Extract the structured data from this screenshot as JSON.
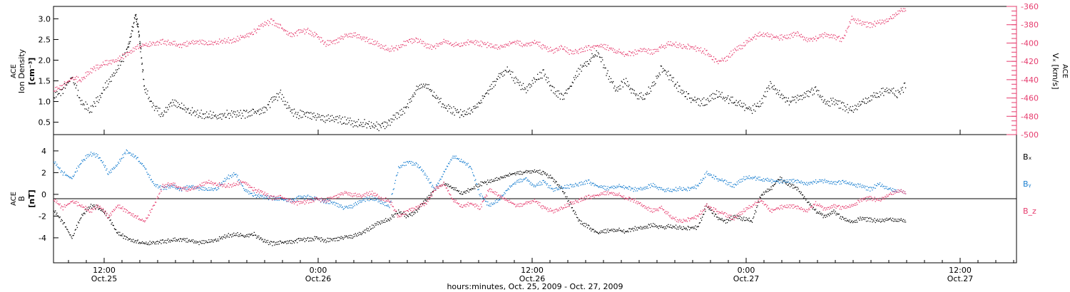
{
  "chart_data": [
    {
      "type": "scatter",
      "panel": "top",
      "title": "",
      "ylabel_left": [
        "ACE",
        "Ion Density",
        "[cm⁻³]"
      ],
      "ylabel_right": [
        "ACE",
        "Vₓ [km/s]"
      ],
      "ylim_left": [
        0.2,
        3.3
      ],
      "ylim_right": [
        -500,
        -360
      ],
      "yticks_left": [
        "0.5",
        "1.0",
        "1.5",
        "2.0",
        "2.5",
        "3.0"
      ],
      "yticks_right": [
        "-360",
        "-380",
        "-400",
        "-420",
        "-440",
        "-460",
        "-480",
        "-500"
      ],
      "series": [
        {
          "color": "#000000",
          "axis": "left",
          "x": [
            3,
            4,
            5,
            6,
            7,
            8,
            9,
            10,
            11,
            11.5,
            12,
            12.3,
            12.6,
            13,
            14,
            15,
            16,
            17,
            18,
            19,
            20,
            21,
            22,
            23,
            24,
            25,
            26,
            27,
            28,
            29,
            30,
            31,
            32,
            33,
            34,
            35,
            36,
            37,
            38,
            39,
            40,
            41,
            42,
            43,
            44,
            45,
            46,
            47,
            48,
            49,
            50,
            51,
            52,
            53,
            54,
            55,
            56,
            57,
            58,
            59,
            60,
            61,
            62,
            63,
            64,
            65,
            66,
            67,
            68,
            69,
            70,
            71,
            72,
            73,
            74,
            75,
            76,
            77,
            78,
            79,
            80,
            81,
            82,
            83,
            84,
            85,
            86,
            87,
            88,
            89,
            90,
            91,
            92,
            93,
            94,
            95,
            96,
            97
          ],
          "y": [
            1.1,
            1.3,
            1.6,
            1.0,
            0.8,
            1.1,
            1.5,
            1.8,
            2.2,
            2.6,
            3.1,
            2.8,
            2.2,
            1.3,
            0.9,
            0.7,
            1.0,
            0.9,
            0.8,
            0.7,
            0.7,
            0.65,
            0.7,
            0.7,
            0.7,
            0.75,
            0.8,
            1.0,
            1.2,
            0.8,
            0.7,
            0.7,
            0.65,
            0.6,
            0.6,
            0.55,
            0.5,
            0.5,
            0.45,
            0.4,
            0.5,
            0.7,
            0.9,
            1.3,
            1.4,
            1.2,
            0.9,
            0.8,
            0.7,
            0.8,
            1.0,
            1.3,
            1.6,
            1.8,
            1.5,
            1.3,
            1.5,
            1.7,
            1.3,
            1.1,
            1.4,
            1.8,
            2.0,
            2.2,
            1.7,
            1.3,
            1.5,
            1.2,
            1.1,
            1.4,
            1.8,
            1.6,
            1.3,
            1.1,
            1.0,
            1.0,
            1.2,
            1.1,
            1.0,
            0.9,
            0.8,
            1.0,
            1.4,
            1.2,
            1.0,
            1.1,
            1.2,
            1.3,
            1.0,
            1.0,
            0.9,
            0.8,
            1.0,
            1.1,
            1.2,
            1.3,
            1.2,
            1.4
          ]
        },
        {
          "color": "#e63c6e",
          "axis": "right",
          "x": [
            3,
            4,
            5,
            6,
            7,
            8,
            9,
            10,
            11,
            12,
            13,
            14,
            15,
            16,
            17,
            18,
            19,
            20,
            21,
            22,
            23,
            24,
            25,
            26,
            27,
            28,
            29,
            30,
            31,
            32,
            33,
            34,
            35,
            36,
            37,
            38,
            39,
            40,
            41,
            42,
            43,
            44,
            45,
            46,
            47,
            48,
            49,
            50,
            51,
            52,
            53,
            54,
            55,
            56,
            57,
            58,
            59,
            60,
            61,
            62,
            63,
            64,
            65,
            66,
            67,
            68,
            69,
            70,
            71,
            72,
            73,
            74,
            75,
            76,
            77,
            78,
            79,
            80,
            81,
            82,
            83,
            84,
            85,
            86,
            87,
            88,
            89,
            90,
            91,
            92,
            93,
            94,
            95,
            96,
            97
          ],
          "y": [
            -452,
            -446,
            -438,
            -440,
            -430,
            -425,
            -420,
            -418,
            -412,
            -405,
            -402,
            -400,
            -398,
            -400,
            -402,
            -399,
            -398,
            -400,
            -398,
            -397,
            -396,
            -392,
            -388,
            -380,
            -376,
            -382,
            -390,
            -388,
            -386,
            -392,
            -400,
            -398,
            -392,
            -390,
            -394,
            -398,
            -402,
            -406,
            -404,
            -398,
            -396,
            -402,
            -404,
            -398,
            -402,
            -400,
            -398,
            -400,
            -402,
            -404,
            -401,
            -398,
            -402,
            -398,
            -404,
            -408,
            -405,
            -410,
            -408,
            -405,
            -402,
            -404,
            -408,
            -412,
            -410,
            -406,
            -410,
            -404,
            -400,
            -402,
            -404,
            -406,
            -410,
            -420,
            -418,
            -408,
            -402,
            -394,
            -390,
            -392,
            -394,
            -392,
            -390,
            -396,
            -395,
            -390,
            -392,
            -396,
            -372,
            -378,
            -380,
            -377,
            -374,
            -366,
            -362
          ]
        }
      ]
    },
    {
      "type": "scatter",
      "panel": "bottom",
      "title": "",
      "ylabel": [
        "ACE",
        "B",
        "[nT]"
      ],
      "ylim": [
        -6.3,
        5.5
      ],
      "yticks": [
        "4",
        "2",
        "0",
        "-2",
        "-4"
      ],
      "xlabel": "hours:minutes, Oct. 25, 2009 - Oct. 27, 2009",
      "xticks": [
        {
          "time": "12:00",
          "date": "Oct.25"
        },
        {
          "time": "0:00",
          "date": "Oct.26"
        },
        {
          "time": "12:00",
          "date": "Oct.26"
        },
        {
          "time": "0:00",
          "date": "Oct.27"
        },
        {
          "time": "12:00",
          "date": "Oct.27"
        }
      ],
      "xrange_hours": [
        3,
        56
      ],
      "series": [
        {
          "name": "Bₓ",
          "color": "#000000",
          "x": [
            3,
            4,
            5,
            6,
            7,
            8,
            9,
            10,
            11,
            12,
            13,
            14,
            15,
            16,
            17,
            18,
            19,
            20,
            21,
            22,
            23,
            24,
            25,
            26,
            27,
            28,
            29,
            30,
            31,
            32,
            33,
            34,
            35,
            36,
            37,
            38,
            39,
            40,
            41,
            42,
            43,
            44,
            45,
            46,
            47,
            48,
            49,
            50,
            51,
            52,
            53,
            54,
            55,
            56,
            57,
            58,
            59,
            60,
            61,
            62,
            63,
            64,
            65,
            66,
            67,
            68,
            69,
            70,
            71,
            72,
            73,
            74,
            75,
            76,
            77,
            78,
            79,
            80,
            81,
            82,
            83,
            84,
            85,
            86,
            87,
            88,
            89,
            90,
            91,
            92,
            93,
            94,
            95,
            96,
            97
          ],
          "y": [
            -1.5,
            -2.5,
            -4.0,
            -2.0,
            -1.0,
            -1.2,
            -2.0,
            -3.5,
            -4.0,
            -4.3,
            -4.5,
            -4.4,
            -4.3,
            -4.2,
            -4.1,
            -4.2,
            -4.4,
            -4.3,
            -4.1,
            -3.8,
            -3.6,
            -3.8,
            -3.6,
            -4.2,
            -4.5,
            -4.4,
            -4.3,
            -4.2,
            -4.1,
            -4.0,
            -4.2,
            -4.1,
            -3.9,
            -3.8,
            -3.5,
            -3.0,
            -2.5,
            -2.2,
            -1.5,
            -2.0,
            -1.5,
            -0.5,
            0.5,
            1.0,
            0.6,
            0.2,
            0.5,
            1.0,
            1.2,
            1.5,
            1.8,
            2.0,
            2.1,
            2.2,
            2.0,
            1.5,
            0.5,
            -1.0,
            -2.5,
            -3.0,
            -3.5,
            -3.3,
            -3.2,
            -3.4,
            -3.1,
            -3.0,
            -2.8,
            -3.0,
            -2.9,
            -3.0,
            -3.1,
            -3.0,
            -1.0,
            -2.0,
            -2.5,
            -2.0,
            -2.2,
            -2.4,
            0.0,
            0.5,
            1.5,
            1.0,
            0.5,
            -0.5,
            -1.5,
            -2.0,
            -1.5,
            -2.2,
            -2.5,
            -2.2,
            -2.3,
            -2.4,
            -2.2,
            -2.3,
            -2.4
          ]
        },
        {
          "name": "Bᵧ",
          "color": "#1a7fd0",
          "x": [
            3,
            4,
            5,
            6,
            7,
            8,
            9,
            10,
            11,
            12,
            13,
            14,
            15,
            16,
            17,
            18,
            19,
            20,
            21,
            22,
            23,
            24,
            25,
            26,
            27,
            28,
            29,
            30,
            31,
            32,
            33,
            34,
            35,
            36,
            37,
            38,
            39,
            40,
            41,
            42,
            43,
            44,
            45,
            46,
            47,
            48,
            49,
            50,
            51,
            52,
            53,
            54,
            55,
            56,
            57,
            58,
            59,
            60,
            61,
            62,
            63,
            64,
            65,
            66,
            67,
            68,
            69,
            70,
            71,
            72,
            73,
            74,
            75,
            76,
            77,
            78,
            79,
            80,
            81,
            82,
            83,
            84,
            85,
            86,
            87,
            88,
            89,
            90,
            91,
            92,
            93,
            94,
            95,
            96,
            97
          ],
          "y": [
            3.0,
            2.0,
            1.5,
            3.0,
            3.8,
            3.5,
            2.0,
            2.8,
            4.0,
            3.5,
            2.5,
            1.0,
            0.6,
            0.8,
            0.5,
            0.8,
            0.6,
            0.5,
            0.6,
            1.5,
            2.0,
            0.5,
            0.0,
            -0.2,
            -0.3,
            -0.4,
            -0.5,
            -0.3,
            -0.2,
            -0.4,
            -0.6,
            -0.8,
            -1.2,
            -1.0,
            -0.5,
            -0.3,
            -0.6,
            -1.0,
            2.5,
            3.0,
            2.8,
            1.8,
            0.5,
            2.0,
            3.5,
            3.2,
            2.5,
            0.0,
            -1.0,
            -0.5,
            0.5,
            1.2,
            1.5,
            0.8,
            1.2,
            0.5,
            0.6,
            0.8,
            1.0,
            1.2,
            0.8,
            0.6,
            0.8,
            0.7,
            0.5,
            0.6,
            0.9,
            0.5,
            0.4,
            0.6,
            0.5,
            0.8,
            2.0,
            1.5,
            1.2,
            0.8,
            1.5,
            1.6,
            1.4,
            1.3,
            1.2,
            1.3,
            1.2,
            1.0,
            1.2,
            1.3,
            1.1,
            1.2,
            1.0,
            0.8,
            0.5,
            1.0,
            0.6,
            0.4,
            0.2
          ]
        },
        {
          "name": "B_z",
          "color": "#e63c6e",
          "x": [
            3,
            4,
            5,
            6,
            7,
            8,
            9,
            10,
            11,
            12,
            13,
            14,
            15,
            16,
            17,
            18,
            19,
            20,
            21,
            22,
            23,
            24,
            25,
            26,
            27,
            28,
            29,
            30,
            31,
            32,
            33,
            34,
            35,
            36,
            37,
            38,
            39,
            40,
            41,
            42,
            43,
            44,
            45,
            46,
            47,
            48,
            49,
            50,
            51,
            52,
            53,
            54,
            55,
            56,
            57,
            58,
            59,
            60,
            61,
            62,
            63,
            64,
            65,
            66,
            67,
            68,
            69,
            70,
            71,
            72,
            73,
            74,
            75,
            76,
            77,
            78,
            79,
            80,
            81,
            82,
            83,
            84,
            85,
            86,
            87,
            88,
            89,
            90,
            91,
            92,
            93,
            94,
            95,
            96,
            97
          ],
          "y": [
            -0.5,
            -1.2,
            -0.6,
            -1.0,
            -1.5,
            -1.0,
            -2.0,
            -1.0,
            -1.5,
            -2.0,
            -2.5,
            -1.0,
            0.8,
            1.0,
            0.6,
            0.5,
            0.8,
            1.2,
            1.0,
            0.8,
            1.0,
            1.2,
            0.5,
            0.2,
            -0.3,
            -0.2,
            -0.5,
            -0.8,
            -0.6,
            -0.4,
            -0.5,
            -0.2,
            0.2,
            0.0,
            -0.1,
            0.2,
            -0.3,
            -0.5,
            -2.0,
            -1.5,
            -1.2,
            -0.8,
            0.5,
            1.0,
            -0.5,
            -1.0,
            -0.8,
            -1.2,
            0.5,
            0.0,
            -0.5,
            -1.0,
            -0.8,
            -0.5,
            -1.2,
            -1.5,
            -1.3,
            -0.8,
            -0.5,
            -0.2,
            0.0,
            0.2,
            0.1,
            -0.3,
            -0.5,
            -1.0,
            -1.5,
            -1.2,
            -2.0,
            -2.4,
            -2.3,
            -2.0,
            -1.0,
            -1.5,
            -1.8,
            -2.2,
            -1.5,
            -1.0,
            -0.5,
            -1.5,
            -1.2,
            -1.0,
            -1.2,
            -1.5,
            -0.8,
            -1.3,
            -1.0,
            -1.2,
            -1.0,
            -0.5,
            -0.3,
            -0.5,
            0.0,
            0.4,
            0.2
          ]
        }
      ]
    }
  ]
}
